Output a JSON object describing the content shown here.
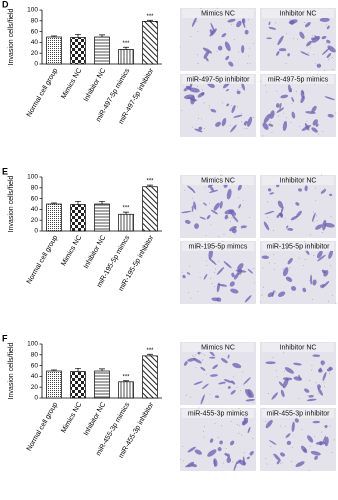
{
  "chart_data": [
    {
      "type": "bar",
      "panel": "D",
      "y_label": "Invasion cells/field",
      "color": "#000000",
      "categories": [
        "Normal cell group",
        "Mimics NC",
        "Inhibitor NC",
        "miR-497-5p mimics",
        "miR-497-5p inhibitor"
      ],
      "values": [
        50,
        49,
        50,
        27,
        79
      ],
      "errors": [
        2,
        6,
        4,
        4,
        2
      ],
      "significance": [
        null,
        null,
        null,
        "***",
        "***"
      ],
      "ylim": [
        0,
        100
      ],
      "yticks": [
        0,
        20,
        40,
        60,
        80,
        100
      ],
      "images": [
        "Mimics NC",
        "Inhibitor NC",
        "miR-497-5p inhibitor",
        "miR-497-5p mimics"
      ]
    },
    {
      "type": "bar",
      "panel": "E",
      "y_label": "Invasion cells/field",
      "color": "#000000",
      "categories": [
        "Normal cell group",
        "Mimics NC",
        "Inhibitor NC",
        "miR-195-5p mimcs",
        "miR-195-5p inhibitor"
      ],
      "values": [
        50,
        49,
        50,
        31,
        82
      ],
      "errors": [
        2,
        6,
        5,
        4,
        3
      ],
      "significance": [
        null,
        null,
        null,
        "***",
        "***"
      ],
      "ylim": [
        0,
        100
      ],
      "yticks": [
        0,
        20,
        40,
        60,
        80,
        100
      ],
      "images": [
        "Mimics NC",
        "Inhibitor NC",
        "miR-195-5p mimcs",
        "miR-195-5p inhibitor"
      ]
    },
    {
      "type": "bar",
      "panel": "F",
      "y_label": "Invasion cells/field",
      "color": "#000000",
      "categories": [
        "Normal cell group",
        "Mimics NC",
        "Inhibitor NC",
        "miR-455-3p mimics",
        "miR-455-3p inhibitor"
      ],
      "values": [
        50,
        49,
        50,
        30,
        78
      ],
      "errors": [
        2,
        6,
        4,
        2,
        3
      ],
      "significance": [
        null,
        null,
        null,
        "***",
        "***"
      ],
      "ylim": [
        0,
        100
      ],
      "yticks": [
        0,
        20,
        40,
        60,
        80,
        100
      ],
      "images": [
        "Mimics NC",
        "Inhibitor NC",
        "miR-455-3p mimics",
        "miR-455-3p inhibitor"
      ]
    }
  ]
}
